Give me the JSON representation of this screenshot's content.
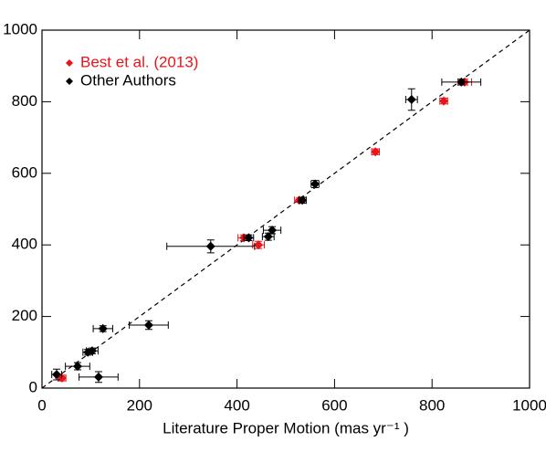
{
  "chart_data": {
    "type": "scatter",
    "x_label": "Literature Proper Motion (mas yr⁻¹ )",
    "xlim": [
      0,
      1000
    ],
    "ylim": [
      0,
      1000
    ],
    "xticks": [
      0,
      200,
      400,
      600,
      800,
      1000
    ],
    "yticks": [
      0,
      200,
      400,
      600,
      800,
      1000
    ],
    "legend": "upper left",
    "series": [
      {
        "name": "Best et al. (2013)",
        "color": "#e8141a",
        "x": [
          41,
          414,
          444,
          528,
          684,
          824,
          867
        ],
        "values": [
          28,
          420,
          400,
          525,
          660,
          802,
          855
        ],
        "xerr": [
          8,
          12,
          12,
          10,
          8,
          8,
          14
        ],
        "yerr": [
          8,
          8,
          10,
          6,
          8,
          8,
          8
        ]
      },
      {
        "name": "Other Authors",
        "color": "#000000",
        "x": [
          30,
          73,
          94,
          103,
          116,
          125,
          219,
          346,
          424,
          464,
          472,
          534,
          560,
          758,
          860
        ],
        "values": [
          38,
          61,
          100,
          104,
          31,
          166,
          176,
          396,
          420,
          423,
          441,
          525,
          570,
          806,
          855
        ],
        "xerr": [
          10,
          25,
          10,
          12,
          40,
          20,
          40,
          90,
          10,
          12,
          18,
          8,
          8,
          12,
          40
        ],
        "yerr": [
          15,
          10,
          8,
          8,
          15,
          8,
          12,
          18,
          8,
          10,
          10,
          8,
          10,
          30,
          8
        ]
      }
    ]
  }
}
